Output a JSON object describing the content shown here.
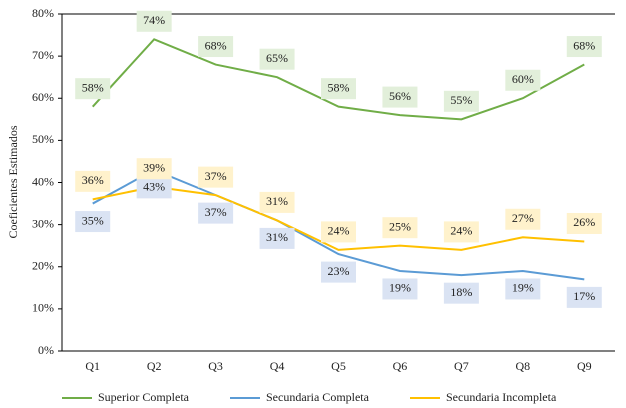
{
  "chart_data": {
    "type": "line",
    "y_label": "Coeficientes Estimados",
    "categories": [
      "Q1",
      "Q2",
      "Q3",
      "Q4",
      "Q5",
      "Q6",
      "Q7",
      "Q8",
      "Q9"
    ],
    "series": [
      {
        "name": "Superior Completa",
        "color": "#70ad47",
        "label_fill": "#e2efda",
        "label_side": "above",
        "values": [
          58,
          74,
          68,
          65,
          58,
          56,
          55,
          60,
          68
        ],
        "value_labels": [
          "58%",
          "74%",
          "68%",
          "65%",
          "58%",
          "56%",
          "55%",
          "60%",
          "68%"
        ]
      },
      {
        "name": "Secundaria Completa",
        "color": "#5b9bd5",
        "label_fill": "#dae3f3",
        "label_side": "below",
        "values": [
          35,
          43,
          37,
          31,
          23,
          19,
          18,
          19,
          17
        ],
        "value_labels": [
          "35%",
          "43%",
          "37%",
          "31%",
          "23%",
          "19%",
          "18%",
          "19%",
          "17%"
        ]
      },
      {
        "name": "Secundaria Incompleta",
        "color": "#ffc000",
        "label_fill": "#fff2cc",
        "label_side": "above",
        "values": [
          36,
          39,
          37,
          31,
          24,
          25,
          24,
          27,
          26
        ],
        "value_labels": [
          "36%",
          "39%",
          "37%",
          "31%",
          "24%",
          "25%",
          "24%",
          "27%",
          "26%"
        ]
      }
    ],
    "ylim": [
      0,
      80
    ],
    "yticks": [
      {
        "value": 0,
        "label": "0%"
      },
      {
        "value": 10,
        "label": "10%"
      },
      {
        "value": 20,
        "label": "20%"
      },
      {
        "value": 30,
        "label": "30%"
      },
      {
        "value": 40,
        "label": "40%"
      },
      {
        "value": 50,
        "label": "50%"
      },
      {
        "value": 60,
        "label": "60%"
      },
      {
        "value": 70,
        "label": "70%"
      },
      {
        "value": 80,
        "label": "80%"
      }
    ],
    "grid": false
  }
}
